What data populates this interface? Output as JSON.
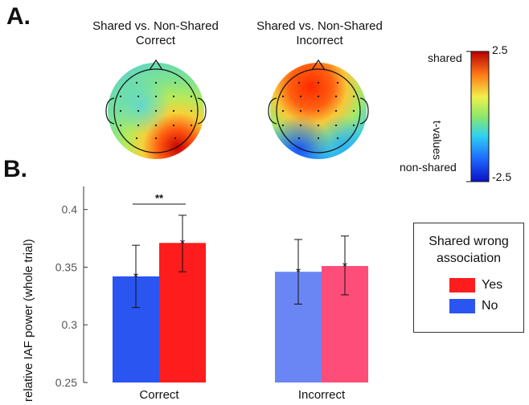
{
  "panel_a": {
    "label": "A.",
    "topo_left_title_1": "Shared vs. Non-Shared",
    "topo_left_title_2": "Correct",
    "topo_right_title_1": "Shared vs. Non-Shared",
    "topo_right_title_2": "Incorrect"
  },
  "colorbar": {
    "label": "t-values",
    "top_label": "shared",
    "bottom_label": "non-shared",
    "max": "2.5",
    "min": "-2.5"
  },
  "panel_b": {
    "label": "B."
  },
  "colors": {
    "correct_no": "#2a55f0",
    "correct_yes": "#ff1c1c",
    "incorrect_no": "#6a86f5",
    "incorrect_yes": "#ff4d7a"
  },
  "chart_data": {
    "type": "bar",
    "ylabel": "relative IAF power (whole  trial)",
    "ylim": [
      0.25,
      0.42
    ],
    "yticks": [
      "0.25",
      "0.3",
      "0.35",
      "0.4"
    ],
    "ytick_values": [
      0.25,
      0.3,
      0.35,
      0.4
    ],
    "categories": [
      "Correct",
      "Incorrect"
    ],
    "series": [
      {
        "name": "No",
        "values": [
          0.342,
          0.346
        ],
        "err_low": [
          0.315,
          0.318
        ],
        "err_high": [
          0.369,
          0.374
        ]
      },
      {
        "name": "Yes",
        "values": [
          0.371,
          0.351
        ],
        "err_low": [
          0.346,
          0.326
        ],
        "err_high": [
          0.395,
          0.377
        ]
      }
    ],
    "significance": {
      "category": "Correct",
      "text": "**"
    },
    "legend": {
      "title_1": "Shared wrong",
      "title_2": "association",
      "placement": "right"
    }
  }
}
